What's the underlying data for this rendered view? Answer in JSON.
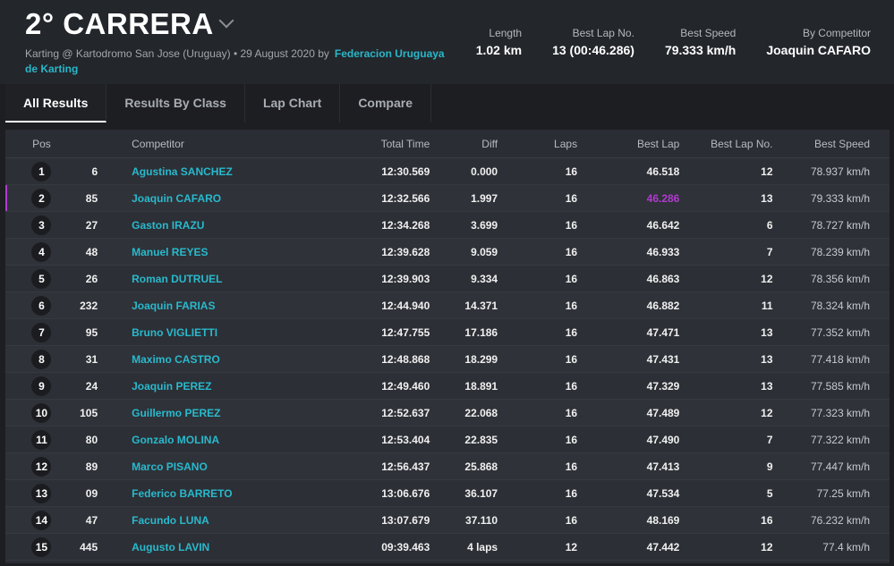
{
  "header": {
    "title": "2° CARRERA",
    "subtitle": "Karting @ Kartodromo San Jose (Uruguay) • 29 August 2020 by",
    "organizer": "Federacion Uruguaya de Karting",
    "stats": [
      {
        "label": "Length",
        "value": "1.02 km"
      },
      {
        "label": "Best Lap No.",
        "value": "13 (00:46.286)"
      },
      {
        "label": "Best Speed",
        "value": "79.333 km/h"
      },
      {
        "label": "By Competitor",
        "value": "Joaquin CAFARO"
      }
    ]
  },
  "tabs": [
    "All Results",
    "Results By Class",
    "Lap Chart",
    "Compare"
  ],
  "table": {
    "columns": [
      "Pos",
      "Competitor",
      "Total Time",
      "Diff",
      "Laps",
      "Best Lap",
      "Best Lap No.",
      "Best Speed"
    ],
    "rows": [
      {
        "pos": "1",
        "num": "6",
        "name": "Agustina SANCHEZ",
        "total": "12:30.569",
        "diff": "0.000",
        "laps": "16",
        "best": "46.518",
        "bln": "12",
        "speed": "78.937 km/h"
      },
      {
        "pos": "2",
        "num": "85",
        "name": "Joaquin CAFARO",
        "total": "12:32.566",
        "diff": "1.997",
        "laps": "16",
        "best": "46.286",
        "bln": "13",
        "speed": "79.333 km/h"
      },
      {
        "pos": "3",
        "num": "27",
        "name": "Gaston IRAZU",
        "total": "12:34.268",
        "diff": "3.699",
        "laps": "16",
        "best": "46.642",
        "bln": "6",
        "speed": "78.727 km/h"
      },
      {
        "pos": "4",
        "num": "48",
        "name": "Manuel REYES",
        "total": "12:39.628",
        "diff": "9.059",
        "laps": "16",
        "best": "46.933",
        "bln": "7",
        "speed": "78.239 km/h"
      },
      {
        "pos": "5",
        "num": "26",
        "name": "Roman DUTRUEL",
        "total": "12:39.903",
        "diff": "9.334",
        "laps": "16",
        "best": "46.863",
        "bln": "12",
        "speed": "78.356 km/h"
      },
      {
        "pos": "6",
        "num": "232",
        "name": "Joaquin FARIAS",
        "total": "12:44.940",
        "diff": "14.371",
        "laps": "16",
        "best": "46.882",
        "bln": "11",
        "speed": "78.324 km/h"
      },
      {
        "pos": "7",
        "num": "95",
        "name": "Bruno VIGLIETTI",
        "total": "12:47.755",
        "diff": "17.186",
        "laps": "16",
        "best": "47.471",
        "bln": "13",
        "speed": "77.352 km/h"
      },
      {
        "pos": "8",
        "num": "31",
        "name": "Maximo CASTRO",
        "total": "12:48.868",
        "diff": "18.299",
        "laps": "16",
        "best": "47.431",
        "bln": "13",
        "speed": "77.418 km/h"
      },
      {
        "pos": "9",
        "num": "24",
        "name": "Joaquin PEREZ",
        "total": "12:49.460",
        "diff": "18.891",
        "laps": "16",
        "best": "47.329",
        "bln": "13",
        "speed": "77.585 km/h"
      },
      {
        "pos": "10",
        "num": "105",
        "name": "Guillermo PEREZ",
        "total": "12:52.637",
        "diff": "22.068",
        "laps": "16",
        "best": "47.489",
        "bln": "12",
        "speed": "77.323 km/h"
      },
      {
        "pos": "11",
        "num": "80",
        "name": "Gonzalo MOLINA",
        "total": "12:53.404",
        "diff": "22.835",
        "laps": "16",
        "best": "47.490",
        "bln": "7",
        "speed": "77.322 km/h"
      },
      {
        "pos": "12",
        "num": "89",
        "name": "Marco PISANO",
        "total": "12:56.437",
        "diff": "25.868",
        "laps": "16",
        "best": "47.413",
        "bln": "9",
        "speed": "77.447 km/h"
      },
      {
        "pos": "13",
        "num": "09",
        "name": "Federico BARRETO",
        "total": "13:06.676",
        "diff": "36.107",
        "laps": "16",
        "best": "47.534",
        "bln": "5",
        "speed": "77.25 km/h"
      },
      {
        "pos": "14",
        "num": "47",
        "name": "Facundo LUNA",
        "total": "13:07.679",
        "diff": "37.110",
        "laps": "16",
        "best": "48.169",
        "bln": "16",
        "speed": "76.232 km/h"
      },
      {
        "pos": "15",
        "num": "445",
        "name": "Augusto LAVIN",
        "total": "09:39.463",
        "diff": "4 laps",
        "laps": "12",
        "best": "47.442",
        "bln": "12",
        "speed": "77.4 km/h"
      }
    ]
  },
  "colors": {
    "accent": "#29b9cd",
    "best_lap": "#b23ad1"
  }
}
